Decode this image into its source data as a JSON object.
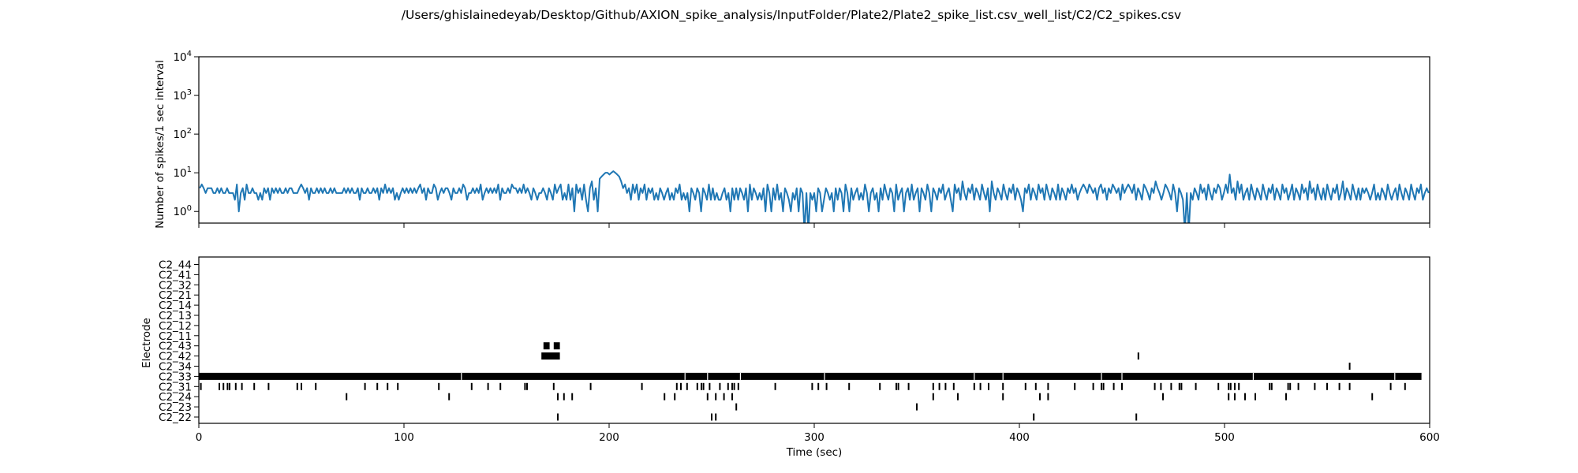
{
  "figure": {
    "title": "/Users/ghislainedeyab/Desktop/Github/AXION_spike_analysis/InputFolder/Plate2/Plate2_spike_list.csv_well_list/C2/C2_spikes.csv"
  },
  "colors": {
    "line": "#1f77b4",
    "spike": "#000000",
    "axes": "#000000",
    "background": "#ffffff"
  },
  "chart_data": [
    {
      "type": "line",
      "title": "",
      "xlabel": "",
      "ylabel": "Number of spikes/1 sec interval",
      "yscale": "log",
      "xlim": [
        0,
        600
      ],
      "ylim": [
        0.5,
        10000
      ],
      "yticks": [
        1,
        10,
        100,
        1000,
        10000
      ],
      "ytick_labels": [
        {
          "base": "10",
          "exp": "0"
        },
        {
          "base": "10",
          "exp": "1"
        },
        {
          "base": "10",
          "exp": "2"
        },
        {
          "base": "10",
          "exp": "3"
        },
        {
          "base": "10",
          "exp": "4"
        }
      ],
      "xticks": [
        0,
        100,
        200,
        300,
        400,
        500,
        600
      ],
      "xtick_labels_shown": false,
      "grid": false,
      "series": [
        {
          "values": [
            4,
            5,
            4,
            3,
            4,
            4,
            4,
            3,
            3,
            4,
            3,
            4,
            3,
            3,
            4,
            3,
            3,
            3,
            2,
            5,
            1,
            3,
            4,
            2,
            5,
            3,
            3,
            4,
            3,
            3,
            2,
            3,
            2,
            4,
            3,
            4,
            2,
            4,
            3,
            4,
            3,
            4,
            3,
            3,
            4,
            3,
            4,
            4,
            3,
            3,
            3,
            4,
            5,
            4,
            3,
            4,
            2,
            4,
            3,
            3,
            4,
            3,
            4,
            3,
            4,
            3,
            3,
            4,
            3,
            4,
            3,
            3,
            3,
            3,
            4,
            3,
            4,
            3,
            4,
            3,
            3,
            4,
            2,
            4,
            3,
            3,
            4,
            3,
            3,
            4,
            3,
            4,
            2,
            4,
            3,
            5,
            3,
            4,
            3,
            4,
            2,
            3,
            2,
            3,
            4,
            3,
            4,
            3,
            4,
            3,
            4,
            3,
            4,
            5,
            3,
            4,
            2,
            4,
            3,
            3,
            5,
            4,
            2,
            3,
            4,
            3,
            4,
            4,
            3,
            2,
            4,
            3,
            3,
            4,
            3,
            5,
            4,
            2,
            3,
            3,
            4,
            3,
            4,
            3,
            5,
            2,
            3,
            4,
            3,
            4,
            3,
            4,
            3,
            5,
            2,
            4,
            3,
            3,
            4,
            3,
            5,
            4,
            4,
            3,
            4,
            3,
            5,
            3,
            4,
            3,
            2,
            4,
            3,
            2,
            3,
            3,
            4,
            3,
            2,
            4,
            3,
            2,
            5,
            3,
            4,
            5,
            2,
            3,
            2,
            5,
            2,
            4,
            1,
            5,
            3,
            4,
            2,
            5,
            2,
            1,
            4,
            6,
            2,
            4,
            1,
            7,
            8,
            9,
            10,
            10,
            9,
            10,
            11,
            10,
            9,
            8,
            6,
            4,
            5,
            3,
            4,
            2,
            5,
            3,
            5,
            2,
            4,
            3,
            5,
            2,
            4,
            3,
            4,
            2,
            3,
            2,
            4,
            3,
            2,
            3,
            4,
            2,
            3,
            2,
            4,
            3,
            5,
            2,
            3,
            2,
            3,
            1,
            4,
            3,
            2,
            4,
            3,
            1,
            4,
            3,
            2,
            5,
            2,
            4,
            2,
            3,
            2,
            2,
            3,
            4,
            2,
            3,
            1,
            4,
            2,
            4,
            2,
            4,
            3,
            2,
            4,
            1,
            5,
            2,
            4,
            3,
            2,
            3,
            2,
            4,
            1,
            5,
            3,
            1,
            4,
            2,
            5,
            2,
            3,
            1,
            4,
            3,
            2,
            1,
            3,
            2,
            4,
            1,
            4,
            3,
            0.3,
            3,
            0.3,
            3,
            2,
            3,
            1,
            4,
            3,
            1,
            2,
            4,
            3,
            2,
            3,
            1,
            4,
            2,
            4,
            3,
            1,
            5,
            3,
            1,
            4,
            2,
            3,
            4,
            2,
            3,
            2,
            5,
            3,
            1,
            3,
            4,
            2,
            3,
            1,
            4,
            2,
            5,
            3,
            2,
            4,
            3,
            1,
            5,
            2,
            3,
            4,
            1,
            3,
            4,
            2,
            5,
            2,
            3,
            4,
            1,
            4,
            3,
            2,
            5,
            3,
            1,
            4,
            3,
            2,
            4,
            3,
            5,
            2,
            3,
            4,
            2,
            1,
            5,
            3,
            4,
            2,
            6,
            3,
            2,
            4,
            3,
            5,
            2,
            4,
            3,
            2,
            5,
            3,
            2,
            4,
            1,
            6,
            3,
            2,
            4,
            3,
            2,
            5,
            3,
            2,
            4,
            3,
            5,
            2,
            4,
            3,
            2,
            1,
            4,
            3,
            5,
            2,
            4,
            3,
            2,
            5,
            3,
            4,
            2,
            5,
            3,
            2,
            4,
            3,
            2,
            5,
            2,
            4,
            3,
            2,
            4,
            3,
            5,
            3,
            4,
            2,
            3,
            4,
            5,
            4,
            3,
            5,
            4,
            3,
            4,
            2,
            4,
            5,
            3,
            4,
            2,
            4,
            3,
            5,
            4,
            3,
            4,
            2,
            5,
            3,
            4,
            5,
            4,
            3,
            5,
            2,
            4,
            3,
            2,
            5,
            4,
            3,
            2,
            4,
            3,
            6,
            4,
            3,
            2,
            3,
            5,
            4,
            3,
            2,
            5,
            3,
            1,
            4,
            3,
            2,
            0.3,
            3,
            0.3,
            3,
            2,
            4,
            3,
            2,
            5,
            3,
            4,
            2,
            5,
            3,
            2,
            4,
            3,
            5,
            4,
            2,
            3,
            5,
            3,
            9,
            3,
            4,
            2,
            6,
            3,
            5,
            2,
            3,
            4,
            2,
            5,
            3,
            2,
            4,
            3,
            2,
            5,
            3,
            2,
            4,
            3,
            5,
            2,
            4,
            3,
            2,
            5,
            3,
            4,
            2,
            3,
            5,
            2,
            4,
            3,
            2,
            5,
            3,
            4,
            2,
            6,
            3,
            4,
            2,
            5,
            3,
            2,
            4,
            2,
            5,
            3,
            2,
            4,
            3,
            5,
            2,
            3,
            6,
            2,
            4,
            3,
            2,
            5,
            3,
            2,
            4,
            2,
            4,
            3,
            4,
            3,
            2,
            3,
            5,
            2,
            3,
            2,
            4,
            3,
            2,
            5,
            3,
            2,
            3,
            4,
            2,
            5,
            3,
            2,
            4,
            3,
            2,
            5,
            3,
            2,
            4,
            3,
            5,
            2,
            3,
            4,
            3
          ]
        }
      ]
    },
    {
      "type": "raster",
      "title": "",
      "xlabel": "Time (sec)",
      "ylabel": "Electrode",
      "xlim": [
        0,
        600
      ],
      "xticks": [
        0,
        100,
        200,
        300,
        400,
        500,
        600
      ],
      "xtick_labels": [
        "0",
        "100",
        "200",
        "300",
        "400",
        "500",
        "600"
      ],
      "grid": false,
      "categories": [
        "C2_22",
        "C2_23",
        "C2_24",
        "C2_31",
        "C2_33",
        "C2_34",
        "C2_42",
        "C2_43",
        "C2_11",
        "C2_12",
        "C2_13",
        "C2_14",
        "C2_21",
        "C2_32",
        "C2_41",
        "C2_44"
      ],
      "spike_times": {
        "C2_22": [
          175,
          250,
          252,
          407,
          457
        ],
        "C2_23": [
          262,
          350
        ],
        "C2_24": [
          72,
          122,
          175,
          178,
          182,
          227,
          232,
          248,
          252,
          256,
          260,
          358,
          370,
          392,
          410,
          414,
          470,
          502,
          505,
          510,
          515,
          530,
          572
        ],
        "C2_31": [
          1,
          10,
          12,
          14,
          15,
          18,
          21,
          27,
          34,
          48,
          50,
          57,
          81,
          87,
          92,
          97,
          117,
          133,
          141,
          147,
          159,
          160,
          173,
          191,
          216,
          233,
          235,
          238,
          243,
          245,
          246,
          249,
          254,
          258,
          260,
          261,
          263,
          281,
          299,
          302,
          306,
          317,
          332,
          340,
          341,
          346,
          358,
          361,
          364,
          368,
          378,
          381,
          385,
          392,
          403,
          408,
          414,
          427,
          436,
          440,
          441,
          446,
          450,
          466,
          469,
          474,
          478,
          479,
          486,
          497,
          502,
          503,
          505,
          507,
          522,
          523,
          531,
          532,
          536,
          544,
          550,
          556,
          561,
          581,
          588
        ],
        "C2_33": {
          "continuous": true,
          "range": [
            0,
            596
          ],
          "gaps": [
            128,
            237,
            248,
            264,
            305,
            378,
            392,
            440,
            450,
            514,
            583
          ]
        },
        "C2_34": [
          561
        ],
        "C2_42": {
          "bursts": [
            [
              167,
              176
            ]
          ],
          "spikes": [
            458
          ]
        },
        "C2_43": {
          "bursts": [
            [
              168,
              171
            ],
            [
              173,
              176
            ]
          ]
        },
        "C2_11": [],
        "C2_12": [],
        "C2_13": [],
        "C2_14": [],
        "C2_21": [],
        "C2_32": [],
        "C2_41": [],
        "C2_44": []
      }
    }
  ]
}
